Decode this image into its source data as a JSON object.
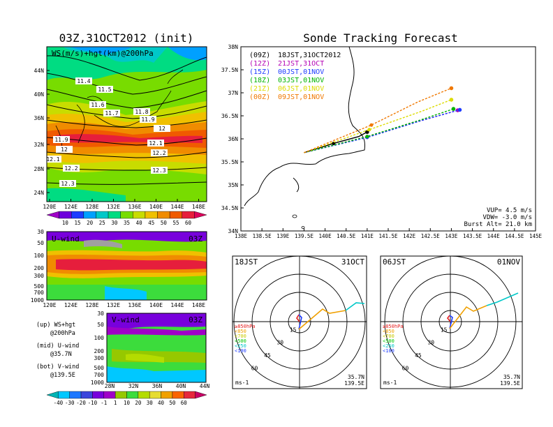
{
  "colors": {
    "ws_levels": [
      "#a000c8",
      "#6e00dc",
      "#1e3cff",
      "#00a0ff",
      "#00c8c8",
      "#00dc82",
      "#78dc00",
      "#c8dc00",
      "#f0c000",
      "#f08c00",
      "#f05a00",
      "#e61e3c",
      "#dc005a"
    ],
    "uv_levels": [
      "#00b4b4",
      "#00c8ff",
      "#1e78ff",
      "#3c46dc",
      "#7800dc",
      "#a000c8",
      "#96c800",
      "#3cdc3c",
      "#b4dc00",
      "#e6dc32",
      "#f0a000",
      "#fa6400",
      "#e6283c",
      "#c80064"
    ],
    "track_00z": "#000000",
    "track_12z": "#b400b4",
    "track_15z": "#1e3cff",
    "track_18z": "#00b400",
    "track_21z": "#dcdc00",
    "track_00z_next": "#f07800"
  },
  "map_panel": {
    "title": "03Z,31OCT2012 (init)",
    "label": "WS(m/s)+hgt(km)@200hPa",
    "lat_labels": [
      "44N",
      "40N",
      "36N",
      "32N",
      "28N",
      "24N"
    ],
    "lon_labels": [
      "120E",
      "124E",
      "128E",
      "132E",
      "136E",
      "140E",
      "144E",
      "148E"
    ],
    "contour_labels": [
      "11.4",
      "11.5",
      "11.6",
      "11.7",
      "11.8",
      "11.9",
      "12",
      "11.9",
      "12",
      "12.1",
      "12.1",
      "12.2",
      "12.2",
      "12.3",
      "12.3"
    ],
    "colorbar_ticks": [
      "10",
      "15",
      "20",
      "25",
      "30",
      "35",
      "40",
      "45",
      "50",
      "55",
      "60"
    ]
  },
  "u_panel": {
    "label": "U-wind",
    "time": "03Z",
    "p_labels": [
      "30",
      "50",
      "100",
      "200",
      "300",
      "500",
      "700",
      "1000"
    ],
    "lon_labels": [
      "120E",
      "124E",
      "128E",
      "132E",
      "136E",
      "140E",
      "144E",
      "148E"
    ]
  },
  "v_panel": {
    "label": "V-wind",
    "time": "03Z",
    "p_labels": [
      "30",
      "50",
      "100",
      "200",
      "300",
      "500",
      "700",
      "1000"
    ],
    "lat_labels": [
      "28N",
      "32N",
      "36N",
      "40N",
      "44N"
    ],
    "colorbar_ticks": [
      "-40",
      "-30",
      "-20",
      "-10",
      "-1",
      "1",
      "10",
      "20",
      "30",
      "40",
      "50",
      "60"
    ]
  },
  "legend_notes": [
    {
      "a": "(up) WS+hgt",
      "b": "@200hPa"
    },
    {
      "a": "(mid) U-wind",
      "b": "@35.7N"
    },
    {
      "a": "(bot) V-wind",
      "b": "@139.5E"
    }
  ],
  "tracking": {
    "title": "Sonde Tracking Forecast",
    "lat_labels": [
      "38N",
      "37.5N",
      "37N",
      "36.5N",
      "36N",
      "35.5N",
      "35N",
      "34.5N",
      "34N"
    ],
    "lon_labels": [
      "138E",
      "138.5E",
      "139E",
      "139.5E",
      "140E",
      "140.5E",
      "141E",
      "141.5E",
      "142E",
      "142.5E",
      "143E",
      "143.5E",
      "144E",
      "144.5E",
      "145E"
    ],
    "legend": [
      {
        "code": "(09Z)",
        "time": "18JST,31OCT2012"
      },
      {
        "code": "(12Z)",
        "time": "21JST,31OCT"
      },
      {
        "code": "(15Z)",
        "time": "00JST,01NOV"
      },
      {
        "code": "(18Z)",
        "time": "03JST,01NOV"
      },
      {
        "code": "(21Z)",
        "time": "06JST,01NOV"
      },
      {
        "code": "(00Z)",
        "time": "09JST,01NOV"
      }
    ],
    "params": [
      "VUP=  4.5 m/s",
      "VDW= -3.0 m/s",
      "Burst Alt= 21.0 km"
    ]
  },
  "chart_data": {
    "type": "line",
    "title": "Sonde Tracking Forecast",
    "xlabel": "",
    "ylabel": "",
    "xlim": [
      138,
      145
    ],
    "ylim": [
      34,
      38
    ],
    "grid": false,
    "legend_position": "top-left",
    "series": [
      {
        "name": "(09Z) 18JST,31OCT2012",
        "x": [
          139.5,
          140.2,
          140.8,
          141.0
        ],
        "y": [
          35.7,
          35.9,
          36.05,
          36.15
        ]
      },
      {
        "name": "(12Z) 21JST,31OCT",
        "x": [
          139.5,
          141.0,
          142.3,
          143.15
        ],
        "y": [
          35.7,
          36.05,
          36.4,
          36.62
        ]
      },
      {
        "name": "(15Z) 00JST,01NOV",
        "x": [
          139.5,
          141.0,
          142.3,
          143.2
        ],
        "y": [
          35.7,
          36.03,
          36.4,
          36.63
        ]
      },
      {
        "name": "(18Z) 03JST,01NOV",
        "x": [
          139.5,
          141.0,
          142.3,
          143.05
        ],
        "y": [
          35.7,
          36.05,
          36.42,
          36.65
        ]
      },
      {
        "name": "(21Z) 06JST,01NOV",
        "x": [
          139.5,
          141.05,
          142.3,
          143.0
        ],
        "y": [
          35.7,
          36.2,
          36.6,
          36.85
        ]
      },
      {
        "name": "(00Z) 09JST,01NOV",
        "x": [
          139.5,
          141.1,
          142.2,
          143.0
        ],
        "y": [
          35.7,
          36.3,
          36.8,
          37.1
        ]
      }
    ]
  },
  "hodo_left": {
    "time": "18JST",
    "date": "31OCT",
    "rings": [
      "15",
      "30",
      "45",
      "60"
    ],
    "legend": [
      "≥850hPa",
      "<850",
      "<700",
      "<500",
      "<250",
      "<100"
    ],
    "unit": "ms-1",
    "loc1": "35.7N",
    "loc2": "139.5E"
  },
  "hodo_right": {
    "time": "06JST",
    "date": "01NOV",
    "rings": [
      "15",
      "30",
      "45",
      "60"
    ],
    "legend": [
      "≥850hPa",
      "<850",
      "<700",
      "<500",
      "<250",
      "<100"
    ],
    "unit": "ms-1",
    "loc1": "35.7N",
    "loc2": "139.5E"
  }
}
